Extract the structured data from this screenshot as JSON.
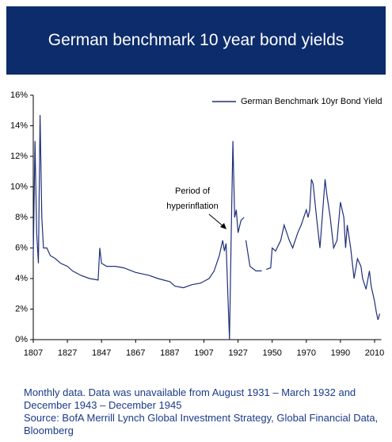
{
  "chart_data": {
    "type": "line",
    "title": "German benchmark 10 year bond yields",
    "note": "Monthly data. Data was unavailable from August 1931 – March 1932 and December 1943 – December 1945",
    "source": "Source: BofA Merrill Lynch Global Investment Strategy, Global Financial Data, Bloomberg",
    "annotation": [
      "Period of",
      "hyperinflation"
    ],
    "x": [
      1807,
      1808,
      1809,
      1810,
      1811,
      1812,
      1813,
      1815,
      1817,
      1820,
      1823,
      1827,
      1830,
      1835,
      1840,
      1845,
      1846,
      1847,
      1850,
      1855,
      1860,
      1867,
      1875,
      1880,
      1887,
      1890,
      1895,
      1900,
      1905,
      1910,
      1913,
      1916,
      1918,
      1919,
      1920,
      1921,
      1922,
      1923,
      1924,
      1925,
      1926,
      1927,
      1929,
      1931,
      1931.8,
      1932.3,
      1935,
      1939,
      1943,
      1944,
      1946,
      1949,
      1950,
      1952,
      1955,
      1957,
      1960,
      1962,
      1965,
      1967,
      1970,
      1971,
      1972,
      1973,
      1974,
      1976,
      1978,
      1979,
      1981,
      1982,
      1984,
      1986,
      1988,
      1990,
      1992,
      1993,
      1994,
      1996,
      1998,
      2000,
      2002,
      2003,
      2005,
      2007,
      2008,
      2010,
      2011,
      2012,
      2013
    ],
    "series": [
      {
        "name": "German Benchmark 10yr Bond Yield",
        "color": "#1f2f7a",
        "values": [
          5.5,
          13,
          7,
          5,
          14.7,
          8,
          6,
          6,
          5.5,
          5.3,
          5.0,
          4.8,
          4.5,
          4.2,
          4.0,
          3.9,
          6.0,
          5.0,
          4.8,
          4.8,
          4.7,
          4.4,
          4.2,
          4.0,
          3.8,
          3.5,
          3.4,
          3.6,
          3.7,
          4.0,
          4.5,
          5.5,
          6.5,
          5.8,
          6.3,
          3,
          0,
          7,
          13,
          8,
          8.5,
          7,
          7.8,
          8,
          null,
          6.5,
          4.8,
          4.5,
          4.5,
          null,
          4.6,
          4.7,
          6.0,
          5.8,
          6.5,
          7.5,
          6.5,
          6.0,
          7.0,
          7.5,
          8.5,
          8.0,
          8.5,
          10.5,
          10.2,
          8.0,
          6.0,
          7.5,
          10.5,
          9.5,
          8.0,
          6.0,
          6.5,
          9.0,
          8.0,
          6.0,
          7.5,
          6.0,
          4.0,
          5.3,
          4.8,
          4.0,
          3.3,
          4.5,
          3.5,
          2.5,
          1.8,
          1.3,
          1.7
        ]
      }
    ],
    "xlim": [
      1807,
      2013
    ],
    "xticks": [
      1807,
      1827,
      1847,
      1867,
      1887,
      1907,
      1927,
      1950,
      1970,
      1990,
      2010
    ],
    "ylim": [
      0,
      16
    ],
    "yticks": [
      {
        "value": 0,
        "label": "0%"
      },
      {
        "value": 2,
        "label": "2%"
      },
      {
        "value": 4,
        "label": "4%"
      },
      {
        "value": 6,
        "label": "6%"
      },
      {
        "value": 8,
        "label": "8%"
      },
      {
        "value": 10,
        "label": "10%"
      },
      {
        "value": 12,
        "label": "12%"
      },
      {
        "value": 14,
        "label": "14%"
      },
      {
        "value": 16,
        "label": "16%"
      }
    ],
    "legend": "top-right",
    "grid": false
  }
}
